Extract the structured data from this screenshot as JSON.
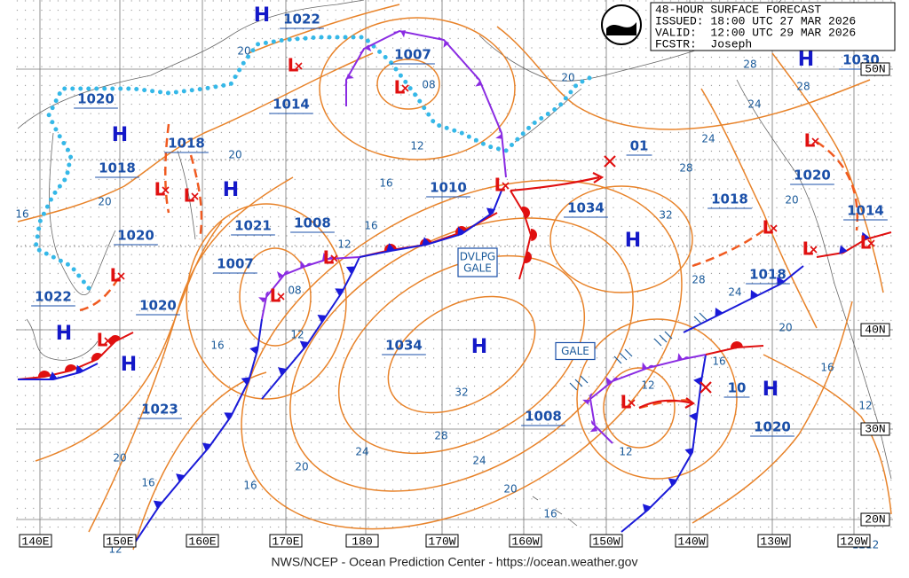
{
  "header": {
    "title": "48-HOUR SURFACE FORECAST",
    "issued": "ISSUED: 18:00 UTC 27 MAR 2026",
    "valid": "VALID:  12:00 UTC 29 MAR 2026",
    "forecaster": "FCSTR:  Joseph"
  },
  "symbols": {
    "high": "H",
    "low": "L"
  },
  "pressure_labels": [
    "1022",
    "1007",
    "1014",
    "1020",
    "1018",
    "1018",
    "1010",
    "1034",
    "1018",
    "1020",
    "1014",
    "1021",
    "1008",
    "1020",
    "1007",
    "1022",
    "1020",
    "1018",
    "1034",
    "1023",
    "1008",
    "10",
    "1020",
    "01",
    "1030"
  ],
  "isobar_labels": [
    "20",
    "20",
    "16",
    "20",
    "08",
    "12",
    "16",
    "16",
    "12",
    "08",
    "12",
    "16",
    "20",
    "16",
    "16",
    "20",
    "24",
    "28",
    "32",
    "24",
    "20",
    "16",
    "12",
    "12",
    "12",
    "16",
    "20",
    "16",
    "12",
    "24",
    "28",
    "32",
    "28",
    "24",
    "24",
    "28",
    "28",
    "20",
    "12",
    "20",
    "1212"
  ],
  "warnings": [
    [
      "DVLPG",
      "GALE"
    ],
    [
      "GALE"
    ]
  ],
  "longitudes": [
    "140E",
    "150E",
    "160E",
    "170E",
    "180",
    "170W",
    "160W",
    "150W",
    "140W",
    "130W",
    "120W"
  ],
  "latitudes": [
    "50N",
    "40N",
    "30N",
    "20N"
  ],
  "footer": "NWS/NCEP - Ocean Prediction Center - https://ocean.weather.gov"
}
